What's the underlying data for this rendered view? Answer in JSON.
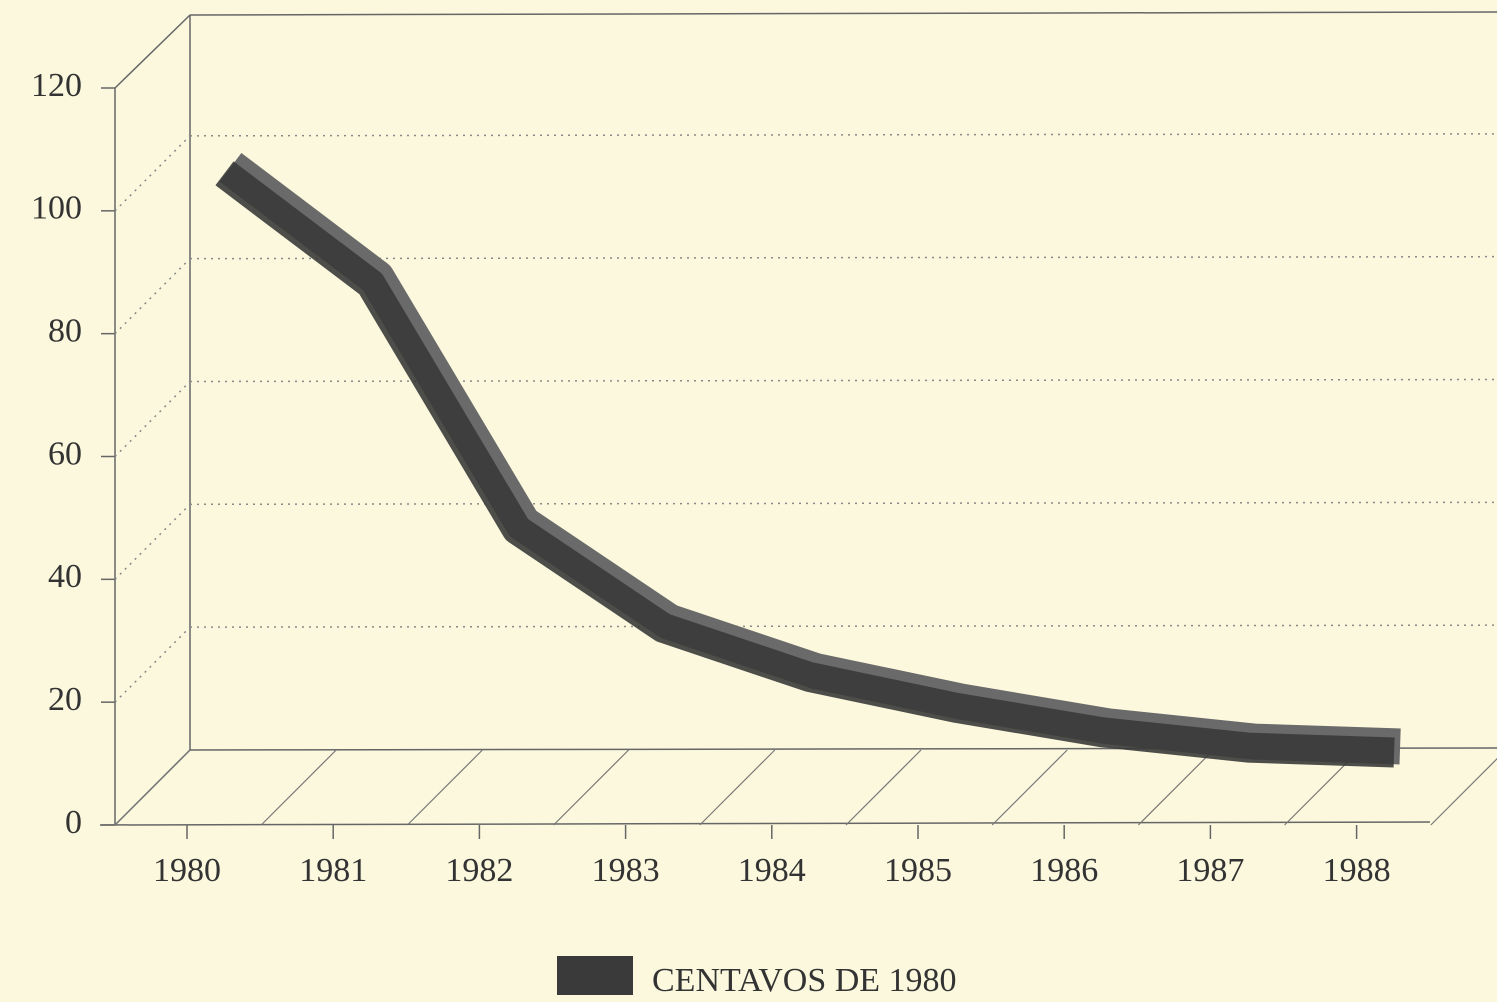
{
  "chart_data": {
    "type": "line",
    "categories": [
      "1980",
      "1981",
      "1982",
      "1983",
      "1984",
      "1985",
      "1986",
      "1987",
      "1988"
    ],
    "series": [
      {
        "name": "CENTAVOS DE 1980",
        "color": "#3a3a3a",
        "values": [
          100,
          82,
          42,
          26,
          18,
          13,
          9,
          6.5,
          5.7
        ]
      }
    ],
    "ylim": [
      0,
      120
    ],
    "yticks": [
      0,
      20,
      40,
      60,
      80,
      100,
      120
    ],
    "grid": true,
    "legend": "bottom"
  }
}
